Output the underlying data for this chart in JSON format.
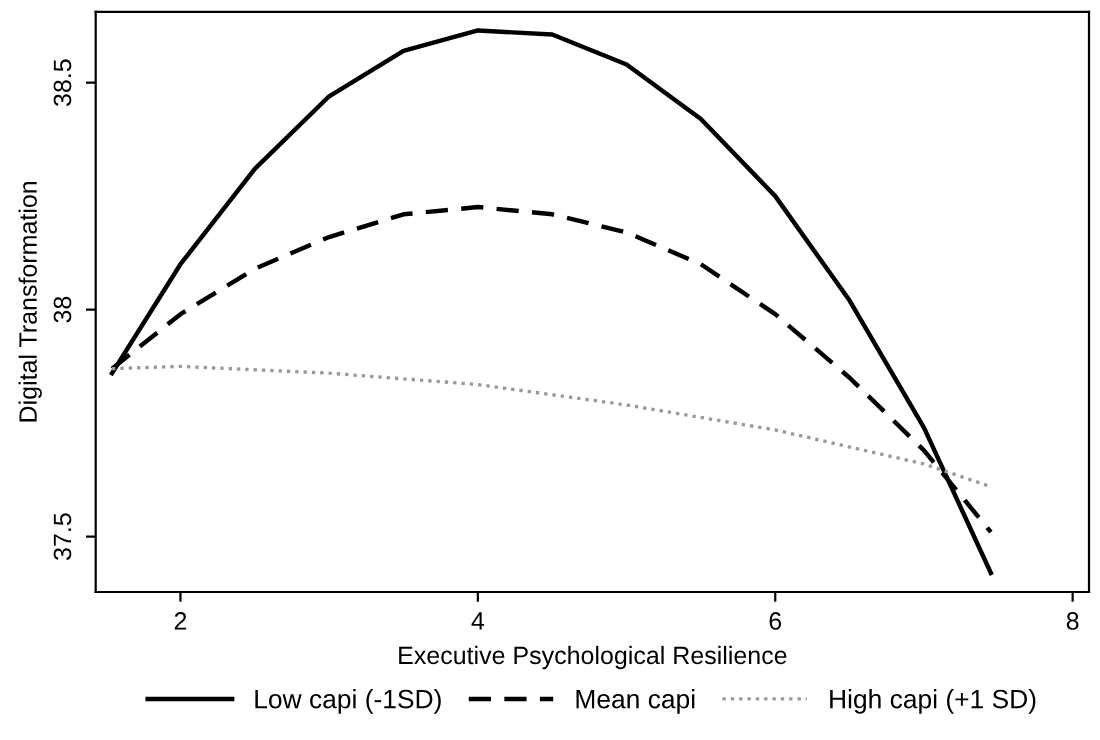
{
  "chart_data": {
    "type": "line",
    "xlabel": "Executive Psychological Resilience",
    "ylabel": "Digital Transformation",
    "xlim": [
      1.43,
      8.11
    ],
    "ylim": [
      37.378,
      38.656
    ],
    "xticks": [
      2,
      4,
      6,
      8
    ],
    "yticks": [
      37.5,
      38,
      38.5
    ],
    "x": [
      1.54,
      2,
      2.5,
      3,
      3.5,
      4,
      4.5,
      5,
      5.5,
      6,
      6.5,
      7,
      7.45
    ],
    "series": [
      {
        "name": "Low capi (-1SD)",
        "color": "#000000",
        "line_style": "solid",
        "values": [
          37.86,
          38.1,
          38.31,
          38.47,
          38.57,
          38.615,
          38.606,
          38.54,
          38.42,
          38.25,
          38.02,
          37.74,
          37.42
        ]
      },
      {
        "name": "Mean capi",
        "color": "#000000",
        "line_style": "dashed",
        "values": [
          37.87,
          37.99,
          38.09,
          38.16,
          38.21,
          38.226,
          38.21,
          38.17,
          38.1,
          37.99,
          37.85,
          37.69,
          37.51
        ]
      },
      {
        "name": "High capi (+1 SD)",
        "color": "#999999",
        "line_style": "dotted",
        "x": [
          1.54,
          2,
          3,
          4,
          5,
          6,
          7,
          7.45
        ],
        "values": [
          37.87,
          37.875,
          37.86,
          37.835,
          37.79,
          37.735,
          37.66,
          37.61
        ]
      }
    ],
    "grid": false,
    "legend": "bottom"
  }
}
